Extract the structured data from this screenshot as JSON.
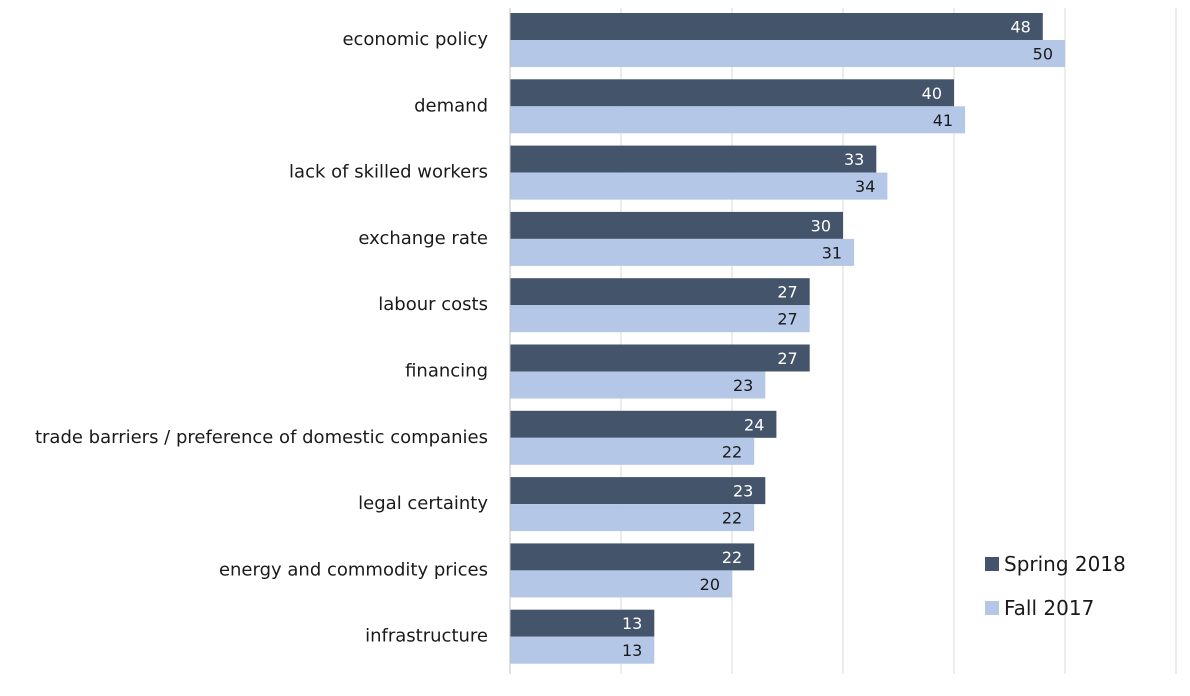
{
  "chart_data": {
    "type": "bar",
    "orientation": "horizontal",
    "categories": [
      "economic policy",
      "demand",
      "lack of skilled workers",
      "exchange rate",
      "labour costs",
      "financing",
      "trade barriers / preference of domestic companies",
      "legal certainty",
      "energy and commodity prices",
      "infrastructure"
    ],
    "series": [
      {
        "name": "Spring 2018",
        "color": "#44546a",
        "label_color": "#ffffff",
        "values": [
          48,
          40,
          33,
          30,
          27,
          27,
          24,
          23,
          22,
          13
        ]
      },
      {
        "name": "Fall 2017",
        "color": "#b4c7e7",
        "label_color": "#1a1a1a",
        "values": [
          50,
          41,
          34,
          31,
          27,
          23,
          22,
          22,
          20,
          13
        ]
      }
    ],
    "xlim": [
      0,
      60
    ],
    "x_gridline_step": 10,
    "grid": true,
    "x_tick_labels_visible": false,
    "data_labels": true,
    "legend_position": "bottom-right",
    "title": "",
    "xlabel": "",
    "ylabel": ""
  }
}
